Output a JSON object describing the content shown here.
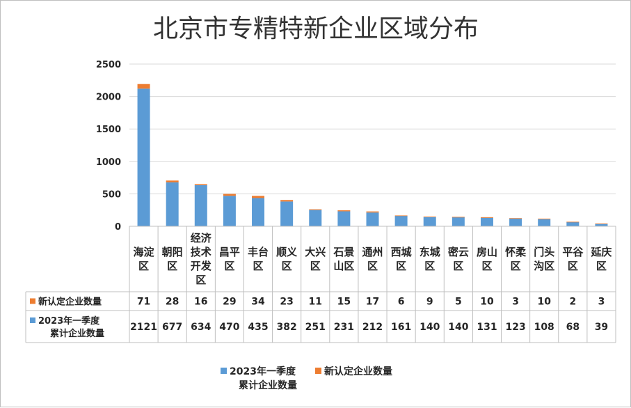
{
  "chart_data": {
    "type": "bar",
    "stacked": true,
    "title": "北京市专精特新企业区域分布",
    "categories": [
      [
        "海淀",
        "区"
      ],
      [
        "朝阳",
        "区"
      ],
      [
        "经济",
        "技术",
        "开发",
        "区"
      ],
      [
        "昌平",
        "区"
      ],
      [
        "丰台",
        "区"
      ],
      [
        "顺义",
        "区"
      ],
      [
        "大兴",
        "区"
      ],
      [
        "石景",
        "山区"
      ],
      [
        "通州",
        "区"
      ],
      [
        "西城",
        "区"
      ],
      [
        "东城",
        "区"
      ],
      [
        "密云",
        "区"
      ],
      [
        "房山",
        "区"
      ],
      [
        "怀柔",
        "区"
      ],
      [
        "门头",
        "沟区"
      ],
      [
        "平谷",
        "区"
      ],
      [
        "延庆",
        "区"
      ]
    ],
    "series": [
      {
        "name": [
          "2023年一季度",
          "累计企业数量"
        ],
        "color": "#5b9bd5",
        "values": [
          2121,
          677,
          634,
          470,
          435,
          382,
          251,
          231,
          212,
          161,
          140,
          140,
          131,
          123,
          108,
          68,
          39
        ]
      },
      {
        "name": [
          "新认定企业数量"
        ],
        "color": "#ed7d31",
        "values": [
          71,
          28,
          16,
          29,
          34,
          23,
          11,
          15,
          17,
          6,
          9,
          5,
          10,
          3,
          10,
          2,
          3
        ]
      }
    ],
    "ylim": [
      0,
      2500
    ],
    "yticks": [
      "0",
      "500",
      "1000",
      "1500",
      "2000",
      "2500"
    ],
    "grid": true,
    "legend_position": "bottom",
    "data_table": true
  }
}
